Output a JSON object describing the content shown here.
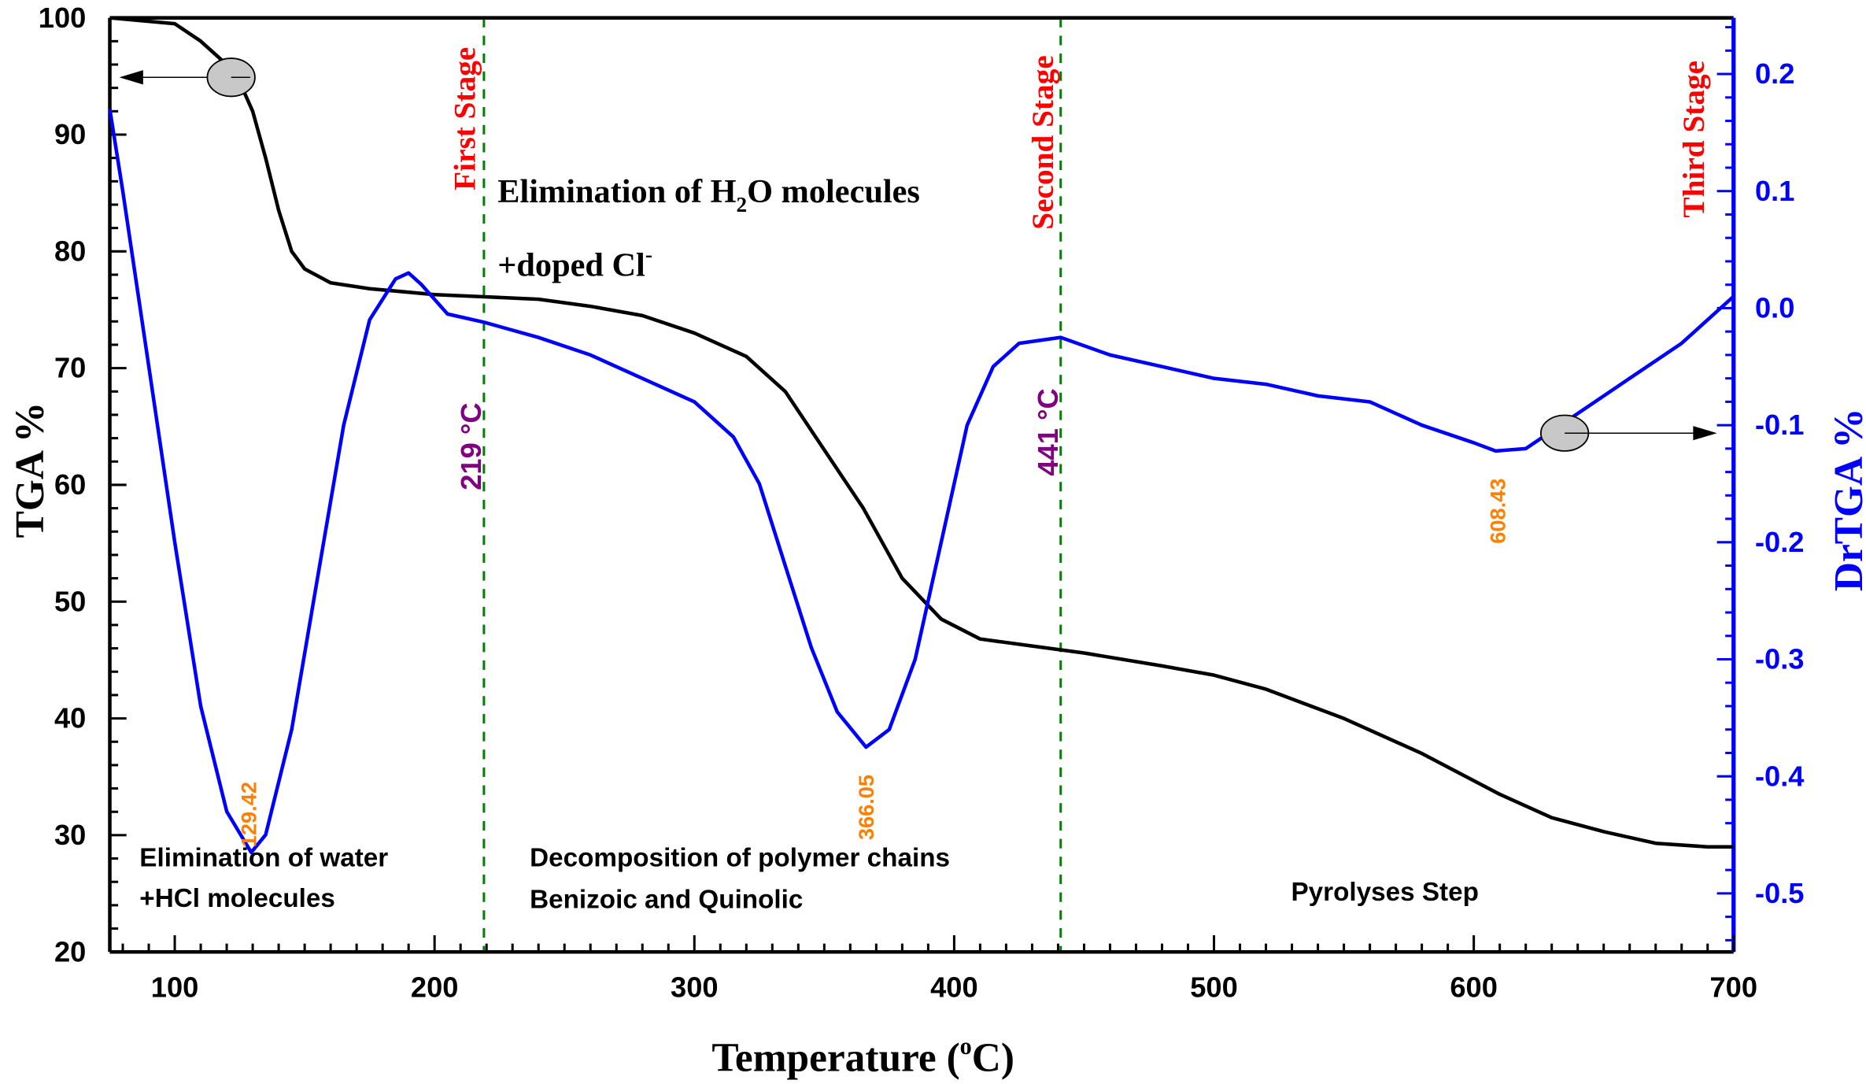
{
  "chart_data": {
    "type": "line",
    "xlabel": "Temperature (",
    "xlabel_sup": "o",
    "xlabel_end": "C)",
    "ylabel_left": "TGA %",
    "ylabel_right": "DrTGA %",
    "xlim": [
      75,
      700
    ],
    "ylim_left": [
      20,
      100
    ],
    "ylim_right": [
      -0.55,
      0.248
    ],
    "x_ticks": [
      100,
      200,
      300,
      400,
      500,
      600,
      700
    ],
    "y_left_ticks": [
      20,
      30,
      40,
      50,
      60,
      70,
      80,
      90,
      100
    ],
    "y_right_ticks": [
      "0.2",
      "0.1",
      "0.0",
      "-0.1",
      "-0.2",
      "-0.3",
      "-0.4",
      "-0.5"
    ],
    "grid": false,
    "series": [
      {
        "axis": "left",
        "color": "#000000",
        "x": [
          75,
          100,
          110,
          120,
          125,
          130,
          135,
          140,
          145,
          150,
          160,
          175,
          200,
          220,
          240,
          260,
          280,
          300,
          320,
          335,
          350,
          365,
          380,
          395,
          410,
          430,
          450,
          480,
          500,
          520,
          550,
          580,
          610,
          630,
          650,
          670,
          690,
          700
        ],
        "y": [
          100,
          99.5,
          98,
          96,
          94.5,
          92,
          88,
          83.5,
          80,
          78.5,
          77.3,
          76.8,
          76.3,
          76.1,
          75.9,
          75.3,
          74.5,
          73,
          71,
          68,
          63,
          58,
          52,
          48.5,
          46.8,
          46.2,
          45.6,
          44.5,
          43.7,
          42.5,
          40,
          37,
          33.5,
          31.5,
          30.3,
          29.3,
          29,
          29
        ]
      },
      {
        "axis": "right",
        "color": "#0000ff",
        "x": [
          75,
          80,
          90,
          100,
          110,
          120,
          129.42,
          135,
          145,
          155,
          165,
          175,
          185,
          190,
          195,
          205,
          219,
          240,
          260,
          280,
          300,
          315,
          325,
          335,
          345,
          355,
          366.05,
          375,
          385,
          395,
          405,
          415,
          425,
          441,
          460,
          480,
          500,
          520,
          540,
          560,
          580,
          600,
          608.43,
          620,
          640,
          660,
          680,
          700
        ],
        "y": [
          0.17,
          0.1,
          -0.05,
          -0.2,
          -0.34,
          -0.43,
          -0.465,
          -0.45,
          -0.36,
          -0.23,
          -0.1,
          -0.01,
          0.025,
          0.03,
          0.02,
          -0.005,
          -0.012,
          -0.025,
          -0.04,
          -0.06,
          -0.08,
          -0.11,
          -0.15,
          -0.22,
          -0.29,
          -0.345,
          -0.375,
          -0.36,
          -0.3,
          -0.2,
          -0.1,
          -0.05,
          -0.03,
          -0.025,
          -0.04,
          -0.05,
          -0.06,
          -0.065,
          -0.075,
          -0.08,
          -0.1,
          -0.115,
          -0.122,
          -0.12,
          -0.09,
          -0.06,
          -0.03,
          0.01
        ]
      }
    ],
    "peak_labels": [
      "129.42",
      "366.05",
      "608.43"
    ],
    "stage_lines": [
      219,
      441
    ],
    "stage_temps": [
      "219 °C",
      "441 °C"
    ],
    "stage_titles": [
      "First Stage",
      "Second Stage",
      "Third Stage"
    ],
    "annotations": {
      "top_line1_a": "Elimination of  H",
      "top_line1_sub": "2",
      "top_line1_b": "O molecules",
      "top_line2": "+doped Cl",
      "top_line2_sup": "-",
      "stage1_line1": "Elimination of water",
      "stage1_line2": "+HCl molecules",
      "stage2_line1": "Decomposition of polymer chains",
      "stage2_line2": "Benizoic and Quinolic",
      "stage3_line1": "Pyrolyses Step"
    },
    "colors": {
      "tga": "#000000",
      "drtga": "#0000ff",
      "stage_title": "#ff0000",
      "stage_temp": "#800080",
      "peak": "#ff8000",
      "stage_line": "#008000"
    }
  }
}
